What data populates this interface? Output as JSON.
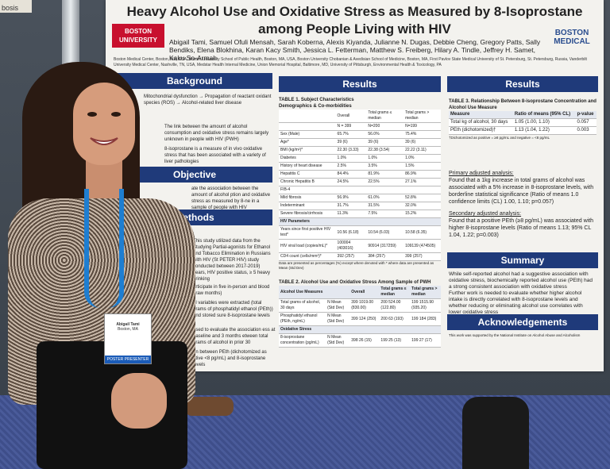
{
  "neighbor_poster": {
    "text": "bosis"
  },
  "poster": {
    "title": "Heavy Alcohol Use and Oxidative Stress as Measured by 8-Isoprostane among People Living with HIV",
    "logo_left": "BOSTON UNIVERSITY",
    "logo_right": "BOSTON MEDICAL",
    "authors": "Abigail Tami, Samuel Ofuli Mensah, Sarah Koberna, Alexis Kiyanda, Julianne N. Dugas, Debbie Cheng, Gregory Patts, Sally Bendiks, Elena Blokhina, Karan Kacy Smith, Jessica L. Fetterman, Matthew S. Freiberg, Hilary A. Tindle, Jeffrey H. Samet, Kaku So-Armah",
    "affiliations": "Boston Medical Center, Boston, MA, USA, Boston University School of Public Health, Boston, MA, USA, Boston University Chobanian & Avedisian School of Medicine, Boston, MA, First Pavlov State Medical University of St. Petersburg, St. Petersburg, Russia, Vanderbilt University Medical Center, Nashville, TN, USA, Medstar Health Internal Medicine, Union Memorial Hospital, Baltimore, MD, University of Pittsburgh, Environmental Health & Toxicology, PA",
    "sections": {
      "background": "Background",
      "objective": "Objective",
      "methods": "Methods",
      "results_1": "Results",
      "results_2": "Results",
      "summary": "Summary",
      "acknowledgements": "Acknowledgements"
    },
    "background": {
      "flow_1": "Mitochondrial dysfunction",
      "flow_2": "Propagation of reactant oxidant species (ROS)",
      "flow_3": "Alcohol-related liver disease",
      "bullet_1": "The link between the amount of alcohol consumption and oxidative stress remains largely unknown in people with HIV (PWH)",
      "bullet_2": "8-isoprostane is a measure of in vivo oxidative stress that has been associated with a variety of liver pathologies"
    },
    "objective": {
      "text": "ate the association between the amount of alcohol ption and oxidative stress as measured by 8-ne in a sample of people with HIV"
    },
    "methods": {
      "line_1": "This study utilized data from the Studying Partial-agonists for Ethanol and Tobacco Elimination in Russians with HIV (St PETER HIV) study conducted between 2017-2019)",
      "line_2": "years, HIV positive status, ≥ 5 heavy drinking",
      "line_3": "articipate in five in-person and blood draw months)",
      "line_4": "ol variables were extracted (total grams of phosphatidyl ethanol (PEth)) and stored sure 8-isoprostane levels",
      "line_5": "used to evaluate the association ess at baseline and 3 months etween total grams of alcohol in prior 30",
      "line_6": "on between PEth (dichotomized as ative <8 pg/mL) and 8-isoprostane levels"
    },
    "table1": {
      "title": "TABLE 1. Subject Characteristics",
      "subtitle": "Demographics & Co-morbidities",
      "col_overall": "Overall",
      "col_le": "Total grams ≤ median",
      "col_gt": "Total grams > median",
      "n_overall": "N = 399",
      "n_le": "N=200",
      "n_gt": "N=199",
      "rows": [
        [
          "Sex (Male)",
          "65.7%",
          "56.0%",
          "75.4%"
        ],
        [
          "Age*",
          "39 (6)",
          "39 (6)",
          "39 (6)"
        ],
        [
          "BMI (kg/m²)*",
          "22.30 (3.33)",
          "22.38 (3.54)",
          "22.22 (3.11)"
        ],
        [
          "Diabetes",
          "1.0%",
          "1.0%",
          "1.0%"
        ],
        [
          "History of heart disease",
          "2.5%",
          "3.5%",
          "1.5%"
        ],
        [
          "Hepatitis C",
          "84.4%",
          "81.9%",
          "86.9%"
        ],
        [
          "Chronic Hepatitis B",
          "24.5%",
          "22.5%",
          "27.1%"
        ],
        [
          "FIB-4",
          "",
          "",
          ""
        ],
        [
          "Mild fibrosis",
          "56.9%",
          "61.0%",
          "52.8%"
        ],
        [
          "Indeterminant",
          "31.7%",
          "31.5%",
          "32.0%"
        ],
        [
          "Severe fibrosis/cirrhosis",
          "11.3%",
          "7.5%",
          "15.2%"
        ]
      ],
      "hiv_header": "HIV Parameters",
      "hiv_rows": [
        [
          "Years since first positive HIV test*",
          "10.56 (6.18)",
          "10.54 (6.03)",
          "10.58 (6.35)"
        ],
        [
          "HIV viral load (copies/mL)*",
          "100004 (403016)",
          "90914 (317259)",
          "109139 (474505)"
        ],
        [
          "CD4 count (cells/mm³)*",
          "392 (257)",
          "384 (257)",
          "399 (257)"
        ]
      ],
      "note": "Data are presented as percentages (%) except where denoted with * where data are presented as Mean (Std Dev)"
    },
    "table2": {
      "title": "TABLE 2. Alcohol Use and Oxidative Stress Among Sample of PWH",
      "sec_1": "Alcohol Use Measures",
      "col_overall": "Overall",
      "col_le": "Total grams ≤ median",
      "col_gt": "Total grams > median",
      "row_1": [
        "Total grams of alcohol, 30 days",
        "N Mean (Std Dev)",
        "399 1019.00 (830.00)",
        "200 524.00 (122.80)",
        "199 1515.90 (935.20)"
      ],
      "row_2": [
        "Phosphatidyl ethanol (PEth, ng/mL)",
        "N Mean (Std Dev)",
        "399 124 (250)",
        "200 63 (193)",
        "199 184 (283)"
      ],
      "sec_2": "Oxidative Stress",
      "row_3": [
        "8-isoprostane concentration (pg/mL)",
        "N Mean (Std Dev)",
        "398 26 (15)",
        "199 25 (13)",
        "199 27 (17)"
      ]
    },
    "table3": {
      "title": "TABLE 3. Relationship Between 8-isoprostane Concentration and Alcohol Use Measure",
      "col_measure": "Measure",
      "col_ratio": "Ratio of means (95% CL)",
      "col_p": "p-value",
      "rows": [
        [
          "Total kg of alcohol, 30 days",
          "1.05 (1.00, 1.10)",
          "0.057"
        ],
        [
          "PEth (dichotomized)†",
          "1.13 (1.04, 1.22)",
          "0.003"
        ]
      ],
      "note": "†Dichotomized as positive = ≥8 pg/mL and negative = <8 pg/mL"
    },
    "results": {
      "primary_head": "Primary adjusted analysis:",
      "primary_text": "Found that a 1kg increase in total grams of alcohol was associated with a 5% increase in 8-isoprostane levels, with borderline statistical significance (Ratio of means 1.0 confidence limits (CL) 1.00, 1.10; p=0.057)",
      "secondary_head": "Secondary adjusted analysis:",
      "secondary_text": "Found that a positive PEth (≥8 pg/mL) was associated with higher 8-isoprostane levels (Ratio of means 1.13; 95% CL 1.04, 1.22; p=0.003)"
    },
    "summary": {
      "bullet_1": "While self-reported alcohol had a suggestive association with oxidative stress, biochemically reported alcohol use (PEth) had a strong consistent association with oxidative stress",
      "bullet_2": "Further work is needed to evaluate whether higher alcohol intake is directly correlated with 8-isoprostane levels and whether reducing or eliminating alcohol use correlates with lower oxidative stress"
    },
    "acknowledgements": {
      "text": "This work was supported by the National Institute on Alcohol Abuse and Alcoholism"
    }
  },
  "badge": {
    "name": "Abigail Tami",
    "org": "Boston, MA",
    "ribbon": "POSTER PRESENTER"
  }
}
